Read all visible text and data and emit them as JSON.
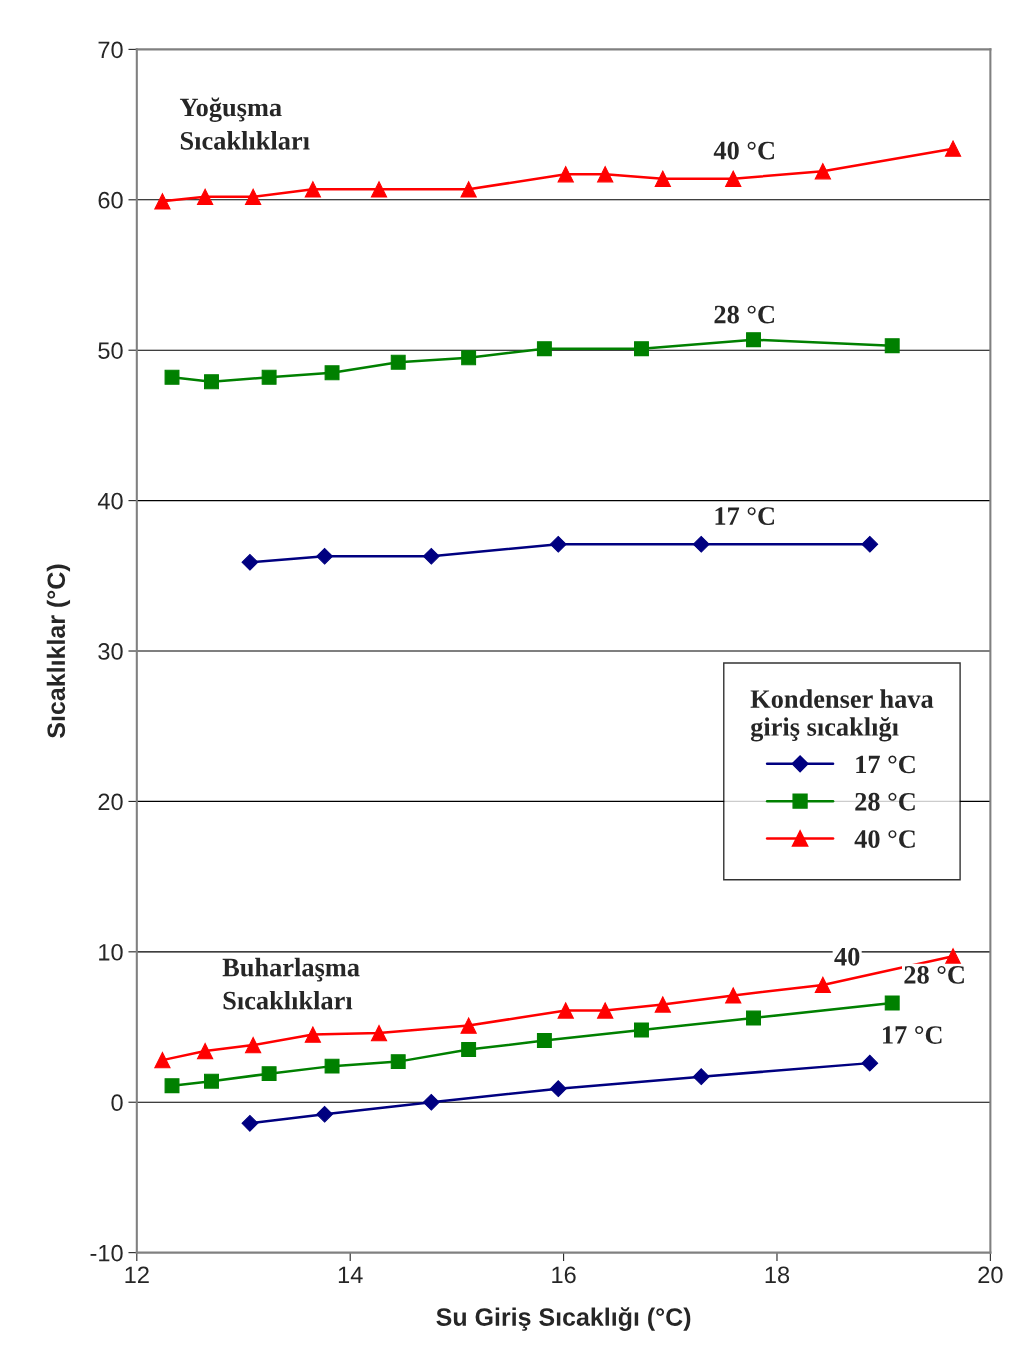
{
  "chart_data": {
    "type": "line",
    "xlabel": "Su Giriş Sıcaklığı (°C)",
    "ylabel": "Sıcaklıklar (°C)",
    "legend_title": "Kondenser hava\ngiriş sıcaklığı",
    "legend": "center right",
    "grid": "y",
    "xlim": [
      12,
      20
    ],
    "xticks": [
      12,
      14,
      16,
      18,
      20
    ],
    "ylim": [
      -10,
      70
    ],
    "yticks": [
      -10,
      0,
      10,
      20,
      30,
      40,
      50,
      60,
      70
    ],
    "series": [
      {
        "name": "17 °C",
        "color": "#000080",
        "marker": "diamond",
        "x": [
          13.06,
          13.76,
          14.76,
          15.95,
          17.29,
          18.87
        ],
        "values": [
          35.9,
          36.3,
          36.3,
          37.1,
          37.1,
          37.1
        ]
      },
      {
        "name": "28 °C",
        "color": "#008000",
        "marker": "square",
        "x": [
          12.33,
          12.7,
          13.24,
          13.83,
          14.45,
          15.11,
          15.82,
          16.73,
          17.78,
          19.08
        ],
        "values": [
          48.2,
          47.9,
          48.2,
          48.5,
          49.2,
          49.5,
          50.1,
          50.1,
          50.7,
          50.3
        ]
      },
      {
        "name": "40 °C",
        "color": "#ff0000",
        "marker": "triangle",
        "x": [
          12.24,
          12.64,
          13.09,
          13.65,
          14.27,
          15.11,
          16.02,
          16.39,
          16.93,
          17.59,
          18.43,
          19.65
        ],
        "values": [
          59.9,
          60.2,
          60.2,
          60.7,
          60.7,
          60.7,
          61.7,
          61.7,
          61.4,
          61.4,
          61.9,
          63.4
        ]
      },
      {
        "color": "#000080",
        "marker": "diamond",
        "x": [
          13.06,
          13.76,
          14.76,
          15.95,
          17.29,
          18.87
        ],
        "values": [
          -1.4,
          -0.8,
          0.0,
          0.9,
          1.7,
          2.6
        ]
      },
      {
        "color": "#008000",
        "marker": "square",
        "x": [
          12.33,
          12.7,
          13.24,
          13.83,
          14.45,
          15.11,
          15.82,
          16.73,
          17.78,
          19.08
        ],
        "values": [
          1.1,
          1.4,
          1.9,
          2.4,
          2.7,
          3.5,
          4.1,
          4.8,
          5.6,
          6.6
        ]
      },
      {
        "color": "#ff0000",
        "marker": "triangle",
        "x": [
          12.24,
          12.64,
          13.09,
          13.65,
          14.27,
          15.11,
          16.02,
          16.39,
          16.93,
          17.59,
          18.43,
          19.65
        ],
        "values": [
          2.8,
          3.4,
          3.8,
          4.5,
          4.6,
          5.1,
          6.1,
          6.1,
          6.5,
          7.1,
          7.8,
          9.7
        ]
      }
    ],
    "annotations": [
      "Yoğuşma\nSıcaklıkları",
      "Buharlaşma\nSıcaklıkları",
      {
        "text": "40 °C",
        "x": 17.3,
        "y": 61.4
      },
      {
        "text": "28 °C",
        "x": 17.3,
        "y": 50.5
      },
      {
        "text": "17 °C",
        "x": 17.3,
        "y": 37.1
      },
      {
        "text": "40",
        "x": 18.43,
        "y": 7.8
      },
      {
        "text": "28 °C",
        "x": 19.08,
        "y": 6.6
      },
      {
        "text": "17 °C",
        "x": 18.87,
        "y": 2.6
      }
    ]
  }
}
